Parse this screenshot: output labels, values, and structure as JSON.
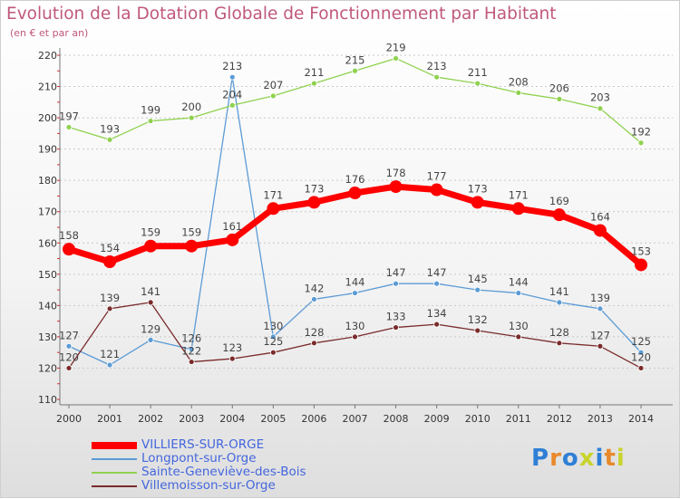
{
  "chart_data": {
    "type": "line",
    "title": "Evolution de la Dotation Globale de Fonctionnement par Habitant",
    "subtitle": "(en € et par an)",
    "x": [
      "2000",
      "2001",
      "2002",
      "2003",
      "2004",
      "2005",
      "2006",
      "2007",
      "2008",
      "2009",
      "2010",
      "2011",
      "2012",
      "2013",
      "2014"
    ],
    "ylim": [
      110,
      220
    ],
    "yticks": [
      110,
      120,
      130,
      140,
      150,
      160,
      170,
      180,
      190,
      200,
      210,
      220
    ],
    "grid": "dashed-horizontal",
    "legend_position": "bottom-left",
    "series": [
      {
        "name": "VILLIERS-SUR-ORGE",
        "color": "#ff0000",
        "emphasis": true,
        "values": [
          158,
          154,
          159,
          159,
          161,
          171,
          173,
          176,
          178,
          177,
          173,
          171,
          169,
          164,
          153
        ]
      },
      {
        "name": "Longpont-sur-Orge",
        "color": "#5b9bd5",
        "emphasis": false,
        "values": [
          127,
          121,
          129,
          126,
          213,
          130,
          142,
          144,
          147,
          147,
          145,
          144,
          141,
          139,
          125
        ]
      },
      {
        "name": "Sainte-Geneviève-des-Bois",
        "color": "#8fd14f",
        "emphasis": false,
        "values": [
          197,
          193,
          199,
          200,
          204,
          207,
          211,
          215,
          219,
          213,
          211,
          208,
          206,
          203,
          192
        ]
      },
      {
        "name": "Villemoisson-sur-Orge",
        "color": "#7a2b2b",
        "emphasis": false,
        "values": [
          120,
          139,
          141,
          122,
          123,
          125,
          128,
          130,
          133,
          134,
          132,
          130,
          128,
          127,
          120
        ]
      }
    ]
  },
  "logo": {
    "p": "P",
    "r": "r",
    "o": "o",
    "x": "x",
    "i1": "i",
    "t": "t",
    "i2": "i"
  }
}
